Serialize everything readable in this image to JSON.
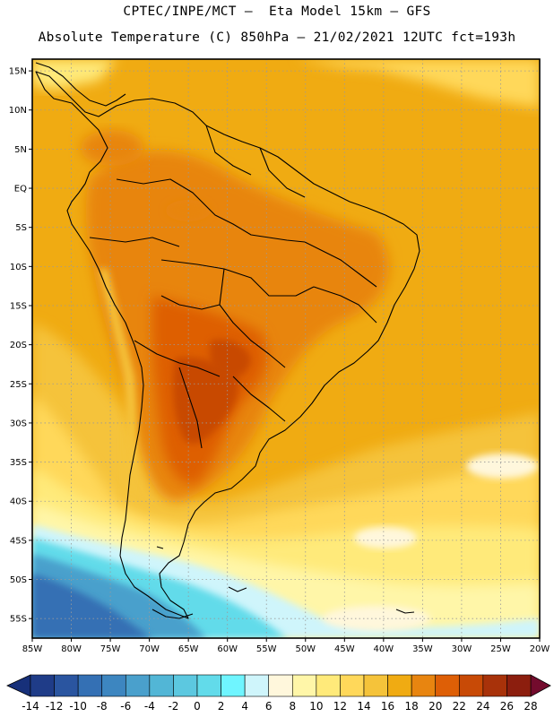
{
  "title": {
    "line1": "CPTEC/INPE/MCT –  Eta Model 15km – GFS",
    "line2": "Absolute Temperature (C) 850hPa – 21/02/2021 12UTC fct=193h"
  },
  "map": {
    "lat_labels": [
      "15N",
      "10N",
      "5N",
      "EQ",
      "5S",
      "10S",
      "15S",
      "20S",
      "25S",
      "30S",
      "35S",
      "40S",
      "45S",
      "50S",
      "55S"
    ],
    "lon_labels": [
      "85W",
      "80W",
      "75W",
      "70W",
      "65W",
      "60W",
      "55W",
      "50W",
      "45W",
      "40W",
      "35W",
      "30W",
      "25W",
      "20W"
    ],
    "lat_range": [
      16.5,
      -57.5
    ],
    "lon_range": [
      -85,
      -20
    ]
  },
  "colorbar": {
    "ticks": [
      "-14",
      "-12",
      "-10",
      "-8",
      "-6",
      "-4",
      "-2",
      "0",
      "2",
      "4",
      "6",
      "8",
      "10",
      "12",
      "14",
      "16",
      "18",
      "20",
      "22",
      "24",
      "26",
      "28"
    ],
    "colors": [
      "#1f3c88",
      "#2a55a0",
      "#3470b4",
      "#3d86c0",
      "#4aa0cc",
      "#52b6d6",
      "#5cc8e0",
      "#62dbea",
      "#6ff5ff",
      "#cff5fb",
      "#fff7dc",
      "#fff6a8",
      "#ffea7a",
      "#ffd85a",
      "#f5c33a",
      "#f0ab12",
      "#e88510",
      "#de5f06",
      "#c84a06",
      "#a8320a",
      "#8c1e0e"
    ],
    "left_arrow_color": "#17307a",
    "right_arrow_color": "#730b2d"
  }
}
